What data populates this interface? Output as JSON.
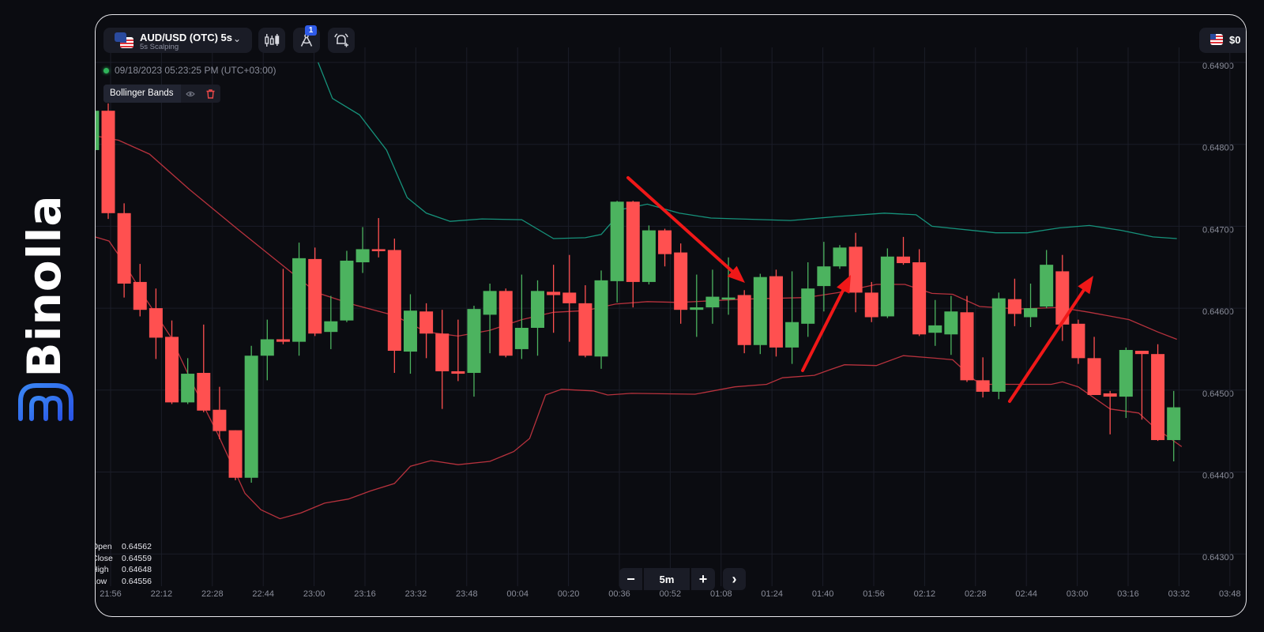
{
  "brand": {
    "name": "Binolla",
    "logo_color": "#2f6cf0"
  },
  "header": {
    "symbol": "AUD/USD (OTC) 5s",
    "subtitle": "5s Scalping",
    "drawing_badge": "1",
    "balance": "$0",
    "icons": [
      "candlestick-chart-icon",
      "drawing-tools-icon",
      "add-alert-icon"
    ]
  },
  "datetime": "09/18/2023  05:23:25 PM  (UTC+03:00)",
  "indicator": {
    "name": "Bollinger Bands"
  },
  "ohlc": [
    {
      "label": "Open",
      "value": "0.64562"
    },
    {
      "label": "Close",
      "value": "0.64559"
    },
    {
      "label": "High",
      "value": "0.64648"
    },
    {
      "label": "Low",
      "value": "0.64556"
    }
  ],
  "zoom": {
    "minus": "−",
    "interval": "5m",
    "plus": "+",
    "next": "›"
  },
  "colors": {
    "up": "#4cb35f",
    "down": "#ff5050",
    "upper_band": "#16927b",
    "middle_band": "#b7323d",
    "lower_band": "#b7323d",
    "arrow": "#f01818",
    "grid": "#1b1d28"
  },
  "chart_data": {
    "type": "candlestick",
    "interval": "5m",
    "y_ticks": [
      "0.64900",
      "0.64800",
      "0.64700",
      "0.64600",
      "0.64500",
      "0.64400",
      "0.64300"
    ],
    "x_ticks": [
      "21:56",
      "22:12",
      "22:28",
      "22:44",
      "23:00",
      "23:16",
      "23:32",
      "23:48",
      "00:04",
      "00:20",
      "00:36",
      "00:52",
      "01:08",
      "01:24",
      "01:40",
      "01:56",
      "02:12",
      "02:28",
      "02:44",
      "03:00",
      "03:16",
      "03:32",
      "03:48"
    ],
    "ylim": [
      0.6425,
      0.649
    ],
    "grid": true,
    "candles_ohlc": [
      [
        0.64793,
        0.64845,
        0.64791,
        0.64841
      ],
      [
        0.64841,
        0.6485,
        0.64709,
        0.64716
      ],
      [
        0.64716,
        0.64728,
        0.64613,
        0.6463
      ],
      [
        0.64632,
        0.64654,
        0.6459,
        0.64598
      ],
      [
        0.646,
        0.64624,
        0.64538,
        0.64564
      ],
      [
        0.64565,
        0.64585,
        0.64483,
        0.64485
      ],
      [
        0.64485,
        0.64539,
        0.64483,
        0.6452
      ],
      [
        0.64521,
        0.6458,
        0.64473,
        0.64475
      ],
      [
        0.64476,
        0.64504,
        0.6444,
        0.6445
      ],
      [
        0.64451,
        0.64451,
        0.6439,
        0.64393
      ],
      [
        0.64393,
        0.64554,
        0.64387,
        0.64542
      ],
      [
        0.64542,
        0.64586,
        0.64512,
        0.64562
      ],
      [
        0.64562,
        0.64648,
        0.64556,
        0.64559
      ],
      [
        0.64559,
        0.6468,
        0.64542,
        0.64661
      ],
      [
        0.6466,
        0.64674,
        0.64566,
        0.64569
      ],
      [
        0.64571,
        0.64615,
        0.6455,
        0.64584
      ],
      [
        0.64585,
        0.6467,
        0.64583,
        0.64658
      ],
      [
        0.64656,
        0.64699,
        0.64643,
        0.64672
      ],
      [
        0.64672,
        0.6471,
        0.64662,
        0.64671
      ],
      [
        0.64671,
        0.64685,
        0.64521,
        0.64548
      ],
      [
        0.64547,
        0.64617,
        0.6452,
        0.64597
      ],
      [
        0.64596,
        0.64606,
        0.64539,
        0.64569
      ],
      [
        0.64569,
        0.64598,
        0.64477,
        0.64523
      ],
      [
        0.64523,
        0.64586,
        0.64511,
        0.6452
      ],
      [
        0.64521,
        0.64603,
        0.64492,
        0.64599
      ],
      [
        0.64592,
        0.6463,
        0.64545,
        0.64621
      ],
      [
        0.64621,
        0.64624,
        0.6454,
        0.64542
      ],
      [
        0.6455,
        0.64641,
        0.64538,
        0.64576
      ],
      [
        0.64576,
        0.64634,
        0.64542,
        0.64621
      ],
      [
        0.6462,
        0.64653,
        0.6457,
        0.64616
      ],
      [
        0.64619,
        0.64665,
        0.64559,
        0.64606
      ],
      [
        0.64606,
        0.64628,
        0.6454,
        0.64542
      ],
      [
        0.64541,
        0.64646,
        0.64526,
        0.64634
      ],
      [
        0.64633,
        0.64731,
        0.64607,
        0.6473
      ],
      [
        0.6473,
        0.64731,
        0.64601,
        0.64632
      ],
      [
        0.64632,
        0.64701,
        0.64629,
        0.64695
      ],
      [
        0.64695,
        0.64697,
        0.64651,
        0.64666
      ],
      [
        0.64668,
        0.64679,
        0.64581,
        0.64598
      ],
      [
        0.64598,
        0.64641,
        0.64565,
        0.64601
      ],
      [
        0.64601,
        0.64647,
        0.64581,
        0.64614
      ],
      [
        0.64612,
        0.64662,
        0.64592,
        0.64613
      ],
      [
        0.64616,
        0.64622,
        0.64545,
        0.64555
      ],
      [
        0.64555,
        0.64642,
        0.64544,
        0.64638
      ],
      [
        0.64639,
        0.64647,
        0.64541,
        0.64552
      ],
      [
        0.64552,
        0.64645,
        0.64532,
        0.64583
      ],
      [
        0.64581,
        0.64656,
        0.64565,
        0.64624
      ],
      [
        0.64627,
        0.64681,
        0.64596,
        0.64651
      ],
      [
        0.64651,
        0.64677,
        0.64648,
        0.64674
      ],
      [
        0.64675,
        0.64692,
        0.64595,
        0.64619
      ],
      [
        0.64619,
        0.64632,
        0.64583,
        0.64589
      ],
      [
        0.6459,
        0.64673,
        0.64588,
        0.64663
      ],
      [
        0.64663,
        0.64687,
        0.64653,
        0.64655
      ],
      [
        0.64656,
        0.64672,
        0.64566,
        0.64568
      ],
      [
        0.6457,
        0.6461,
        0.64554,
        0.64579
      ],
      [
        0.64568,
        0.64615,
        0.64543,
        0.64596
      ],
      [
        0.64595,
        0.64615,
        0.6451,
        0.64512
      ],
      [
        0.64512,
        0.6454,
        0.64491,
        0.64498
      ],
      [
        0.64498,
        0.64619,
        0.64489,
        0.64612
      ],
      [
        0.64611,
        0.64636,
        0.64578,
        0.64593
      ],
      [
        0.64589,
        0.6463,
        0.64577,
        0.646
      ],
      [
        0.64602,
        0.64671,
        0.646,
        0.64653
      ],
      [
        0.64645,
        0.64665,
        0.6456,
        0.6458
      ],
      [
        0.64581,
        0.64586,
        0.64532,
        0.64539
      ],
      [
        0.64539,
        0.64565,
        0.64494,
        0.64494
      ],
      [
        0.64496,
        0.64499,
        0.64446,
        0.64492
      ],
      [
        0.64492,
        0.64552,
        0.64466,
        0.64549
      ],
      [
        0.64548,
        0.64548,
        0.64464,
        0.64544
      ],
      [
        0.64544,
        0.64556,
        0.64438,
        0.64439
      ],
      [
        0.64439,
        0.64499,
        0.64413,
        0.64479
      ]
    ],
    "bands": {
      "upper": [
        [
          15.2,
          0.649
        ],
        [
          16.1,
          0.64856
        ],
        [
          17.8,
          0.64836
        ],
        [
          19.5,
          0.64793
        ],
        [
          20.8,
          0.64735
        ],
        [
          22.0,
          0.64716
        ],
        [
          23.5,
          0.64706
        ],
        [
          25.5,
          0.64709
        ],
        [
          28.0,
          0.64708
        ],
        [
          30.0,
          0.64685
        ],
        [
          32.0,
          0.64686
        ],
        [
          33.0,
          0.6469
        ],
        [
          34.4,
          0.64721
        ],
        [
          35.9,
          0.64727
        ],
        [
          37.9,
          0.64716
        ],
        [
          39.9,
          0.6471
        ],
        [
          44.9,
          0.64707
        ],
        [
          47.9,
          0.64712
        ],
        [
          50.8,
          0.64716
        ],
        [
          52.8,
          0.64714
        ],
        [
          53.8,
          0.647
        ],
        [
          57.8,
          0.64692
        ],
        [
          59.8,
          0.64692
        ],
        [
          61.8,
          0.64698
        ],
        [
          63.7,
          0.64701
        ],
        [
          65.7,
          0.64695
        ],
        [
          67.7,
          0.64687
        ],
        [
          69.2,
          0.64685
        ]
      ],
      "middle": [
        [
          1.0,
          0.64811
        ],
        [
          2.65,
          0.64805
        ],
        [
          4.6,
          0.64788
        ],
        [
          7.1,
          0.64745
        ],
        [
          10.1,
          0.64697
        ],
        [
          12.6,
          0.64658
        ],
        [
          15.1,
          0.64619
        ],
        [
          17.5,
          0.64604
        ],
        [
          20.0,
          0.64591
        ],
        [
          22.0,
          0.64571
        ],
        [
          24.0,
          0.64566
        ],
        [
          26.0,
          0.64573
        ],
        [
          28.0,
          0.64586
        ],
        [
          30.0,
          0.64595
        ],
        [
          32.0,
          0.64597
        ],
        [
          33.9,
          0.64605
        ],
        [
          35.9,
          0.64608
        ],
        [
          37.9,
          0.64607
        ],
        [
          41.9,
          0.64611
        ],
        [
          45.9,
          0.64613
        ],
        [
          47.9,
          0.64619
        ],
        [
          50.3,
          0.64629
        ],
        [
          52.1,
          0.64629
        ],
        [
          53.8,
          0.64618
        ],
        [
          55.1,
          0.64617
        ],
        [
          56.8,
          0.64602
        ],
        [
          59.3,
          0.64599
        ],
        [
          61.8,
          0.64601
        ],
        [
          63.7,
          0.64595
        ],
        [
          66.2,
          0.64586
        ],
        [
          68.0,
          0.64571
        ],
        [
          69.2,
          0.64562
        ]
      ],
      "lower": [
        [
          1.0,
          0.64688
        ],
        [
          2.05,
          0.64682
        ],
        [
          2.9,
          0.64658
        ],
        [
          4.4,
          0.6461
        ],
        [
          5.9,
          0.64566
        ],
        [
          7.4,
          0.64504
        ],
        [
          8.9,
          0.64446
        ],
        [
          10.6,
          0.64374
        ],
        [
          11.6,
          0.64354
        ],
        [
          12.8,
          0.64343
        ],
        [
          14.1,
          0.6435
        ],
        [
          15.6,
          0.64362
        ],
        [
          17.1,
          0.64367
        ],
        [
          18.5,
          0.64377
        ],
        [
          20.0,
          0.64386
        ],
        [
          21.0,
          0.64407
        ],
        [
          22.3,
          0.64414
        ],
        [
          24.0,
          0.64409
        ],
        [
          26.0,
          0.64413
        ],
        [
          27.5,
          0.64425
        ],
        [
          28.5,
          0.64441
        ],
        [
          29.5,
          0.64494
        ],
        [
          30.5,
          0.64501
        ],
        [
          32.5,
          0.64499
        ],
        [
          33.4,
          0.64494
        ],
        [
          34.9,
          0.64496
        ],
        [
          38.9,
          0.64495
        ],
        [
          41.4,
          0.64504
        ],
        [
          43.4,
          0.64507
        ],
        [
          44.4,
          0.64515
        ],
        [
          46.4,
          0.64518
        ],
        [
          47.4,
          0.64525
        ],
        [
          48.3,
          0.64531
        ],
        [
          50.3,
          0.6453
        ],
        [
          52.0,
          0.64542
        ],
        [
          54.0,
          0.64539
        ],
        [
          55.1,
          0.64537
        ],
        [
          56.5,
          0.64512
        ],
        [
          57.3,
          0.64507
        ],
        [
          61.3,
          0.64507
        ],
        [
          62.0,
          0.6451
        ],
        [
          63.0,
          0.64504
        ],
        [
          65.0,
          0.64477
        ],
        [
          66.8,
          0.64472
        ],
        [
          67.7,
          0.64456
        ],
        [
          69.5,
          0.64431
        ]
      ]
    }
  }
}
